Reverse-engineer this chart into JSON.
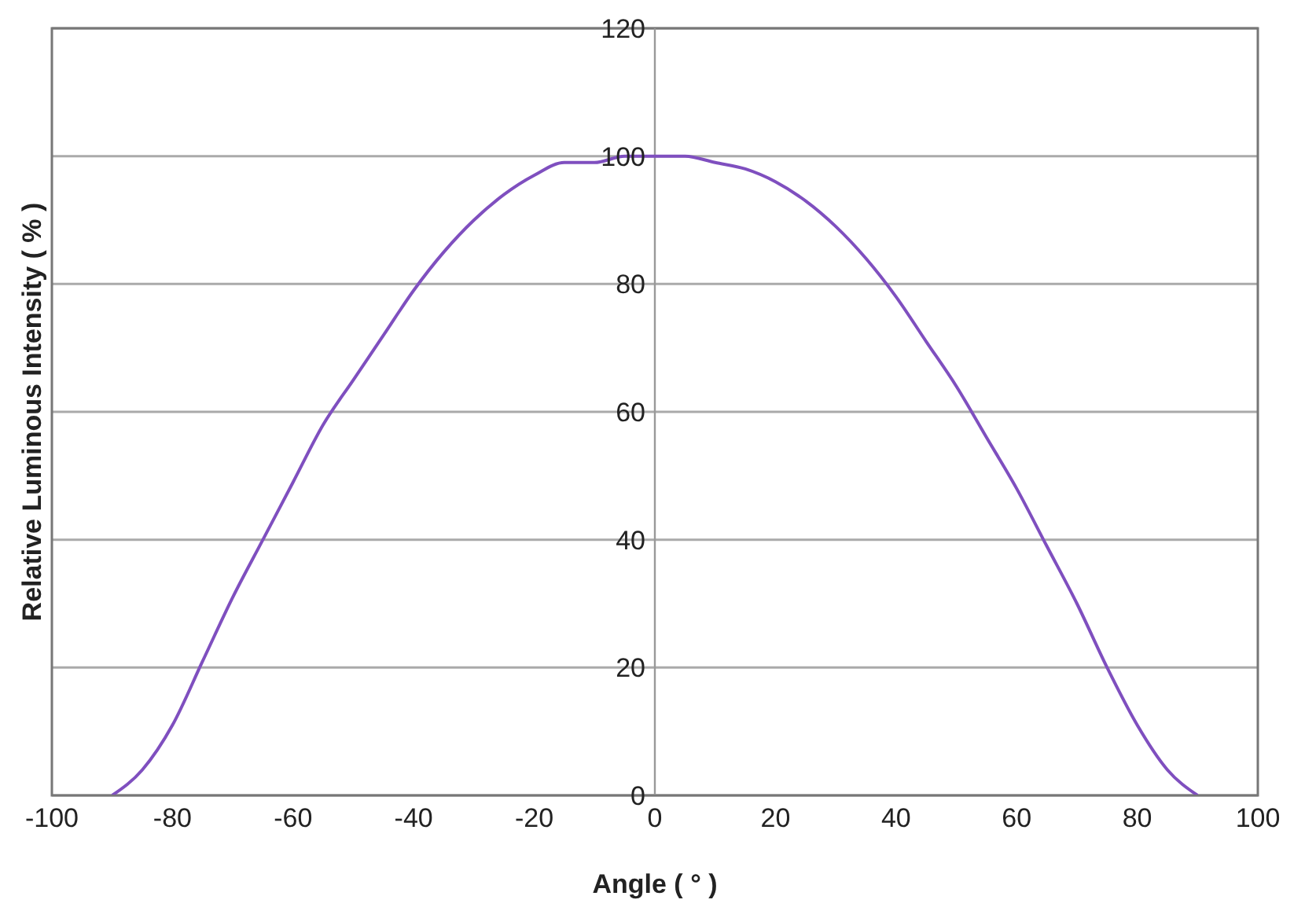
{
  "chart_data": {
    "type": "line",
    "xlabel": "Angle ( ° )",
    "ylabel": "Relative Luminous Intensity ( % )",
    "x": [
      -90,
      -85,
      -80,
      -75,
      -70,
      -65,
      -60,
      -55,
      -50,
      -45,
      -40,
      -35,
      -30,
      -25,
      -20,
      -15,
      -10,
      -5,
      0,
      5,
      10,
      15,
      20,
      25,
      30,
      35,
      40,
      45,
      50,
      55,
      60,
      65,
      70,
      75,
      80,
      85,
      90
    ],
    "series": [
      {
        "color": "#7f4fbf",
        "values": [
          0,
          4,
          11,
          21,
          31,
          40,
          49,
          58,
          65,
          72,
          79,
          85,
          90,
          94,
          97,
          99,
          99,
          100,
          100,
          100,
          99,
          98,
          96,
          93,
          89,
          84,
          78,
          71,
          64,
          56,
          48,
          39,
          30,
          20,
          11,
          4,
          0
        ]
      }
    ],
    "xlim": [
      -100,
      100
    ],
    "xticks": [
      -100,
      -80,
      -60,
      -40,
      -20,
      0,
      20,
      40,
      60,
      80,
      100
    ],
    "ylim": [
      0,
      120
    ],
    "yticks": [
      0,
      20,
      40,
      60,
      80,
      100,
      120
    ],
    "grid": "y",
    "marker": "none",
    "line_style": "solid",
    "legend": false
  }
}
